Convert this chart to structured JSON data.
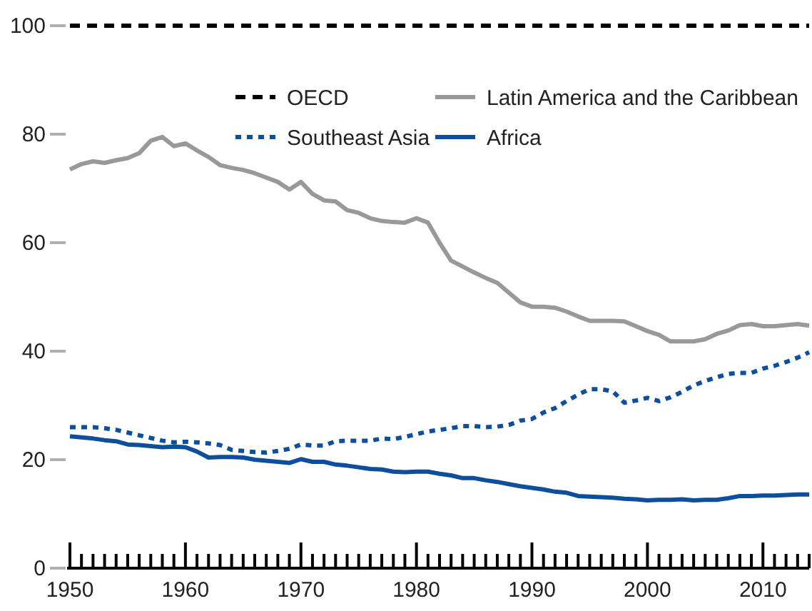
{
  "chart_data": {
    "type": "line",
    "ylim": [
      0,
      100
    ],
    "yticks": [
      0,
      20,
      40,
      60,
      80,
      100
    ],
    "xlim": [
      1950,
      2014
    ],
    "xticks": [
      1950,
      {
        "value": 1951,
        "label": null
      },
      {
        "value": 1952,
        "label": null
      },
      {
        "value": 1953,
        "label": null
      },
      {
        "value": 1954,
        "label": null
      },
      {
        "value": 1955,
        "label": null
      },
      {
        "value": 1956,
        "label": null
      },
      {
        "value": 1957,
        "label": null
      },
      {
        "value": 1958,
        "label": null
      },
      {
        "value": 1959,
        "label": null
      },
      1960,
      {
        "value": 1961,
        "label": null
      },
      {
        "value": 1962,
        "label": null
      },
      {
        "value": 1963,
        "label": null
      },
      {
        "value": 1964,
        "label": null
      },
      {
        "value": 1965,
        "label": null
      },
      {
        "value": 1966,
        "label": null
      },
      {
        "value": 1967,
        "label": null
      },
      {
        "value": 1968,
        "label": null
      },
      {
        "value": 1969,
        "label": null
      },
      1970,
      {
        "value": 1971,
        "label": null
      },
      {
        "value": 1972,
        "label": null
      },
      {
        "value": 1973,
        "label": null
      },
      {
        "value": 1974,
        "label": null
      },
      {
        "value": 1975,
        "label": null
      },
      {
        "value": 1976,
        "label": null
      },
      {
        "value": 1977,
        "label": null
      },
      {
        "value": 1978,
        "label": null
      },
      {
        "value": 1979,
        "label": null
      },
      1980,
      {
        "value": 1981,
        "label": null
      },
      {
        "value": 1982,
        "label": null
      },
      {
        "value": 1983,
        "label": null
      },
      {
        "value": 1984,
        "label": null
      },
      {
        "value": 1985,
        "label": null
      },
      {
        "value": 1986,
        "label": null
      },
      {
        "value": 1987,
        "label": null
      },
      {
        "value": 1988,
        "label": null
      },
      {
        "value": 1989,
        "label": null
      },
      1990,
      {
        "value": 1991,
        "label": null
      },
      {
        "value": 1992,
        "label": null
      },
      {
        "value": 1993,
        "label": null
      },
      {
        "value": 1994,
        "label": null
      },
      {
        "value": 1995,
        "label": null
      },
      {
        "value": 1996,
        "label": null
      },
      {
        "value": 1997,
        "label": null
      },
      {
        "value": 1998,
        "label": null
      },
      {
        "value": 1999,
        "label": null
      },
      2000,
      {
        "value": 2001,
        "label": null
      },
      {
        "value": 2002,
        "label": null
      },
      {
        "value": 2003,
        "label": null
      },
      {
        "value": 2004,
        "label": null
      },
      {
        "value": 2005,
        "label": null
      },
      {
        "value": 2006,
        "label": null
      },
      {
        "value": 2007,
        "label": null
      },
      {
        "value": 2008,
        "label": null
      },
      {
        "value": 2009,
        "label": null
      },
      2010,
      {
        "value": 2011,
        "label": null
      },
      {
        "value": 2012,
        "label": null
      },
      {
        "value": 2013,
        "label": null
      },
      {
        "value": 2014,
        "label": null
      }
    ],
    "grid": false,
    "legend": "top",
    "marker": "none",
    "x": [
      1950,
      1951,
      1952,
      1953,
      1954,
      1955,
      1956,
      1957,
      1958,
      1959,
      1960,
      1961,
      1962,
      1963,
      1964,
      1965,
      1966,
      1967,
      1968,
      1969,
      1970,
      1971,
      1972,
      1973,
      1974,
      1975,
      1976,
      1977,
      1978,
      1979,
      1980,
      1981,
      1982,
      1983,
      1984,
      1985,
      1986,
      1987,
      1988,
      1989,
      1990,
      1991,
      1992,
      1993,
      1994,
      1995,
      1996,
      1997,
      1998,
      1999,
      2000,
      2001,
      2002,
      2003,
      2004,
      2005,
      2006,
      2007,
      2008,
      2009,
      2010,
      2011,
      2012,
      2013,
      2014
    ],
    "series": [
      {
        "name": "OECD",
        "color": "#000000",
        "line_style": "dashed",
        "x": [
          1950,
          2014
        ],
        "values": [
          100,
          100
        ]
      },
      {
        "name": "Latin America and the Caribbean",
        "color": "#999999",
        "line_style": "solid",
        "values": [
          73.5,
          74.5,
          75,
          74.7,
          75.2,
          75.6,
          76.5,
          78.8,
          79.5,
          77.8,
          78.3,
          77,
          75.8,
          74.3,
          73.8,
          73.4,
          72.8,
          72,
          71.2,
          69.8,
          71.2,
          69,
          67.8,
          67.6,
          66,
          65.5,
          64.5,
          64,
          63.8,
          63.7,
          64.5,
          63.7,
          60,
          56.7,
          55.6,
          54.5,
          53.5,
          52.6,
          50.8,
          49,
          48.2,
          48.2,
          48,
          47.3,
          46.4,
          45.6,
          45.6,
          45.6,
          45.5,
          44.6,
          43.7,
          43,
          41.8,
          41.8,
          41.8,
          42.2,
          43.2,
          43.8,
          44.8,
          45,
          44.6,
          44.6,
          44.8,
          45,
          44.7
        ]
      },
      {
        "name": "Southeast Asia",
        "color": "#0d4f9a",
        "line_style": "dotted",
        "values": [
          26,
          26,
          26,
          25.8,
          25.5,
          25,
          24.5,
          24,
          23.5,
          23.2,
          23.3,
          23.2,
          23,
          22.7,
          21.8,
          21.6,
          21.4,
          21.3,
          21.6,
          22,
          22.8,
          22.6,
          22.6,
          23.4,
          23.5,
          23.5,
          23.5,
          23.9,
          23.8,
          24.2,
          24.7,
          25.2,
          25.5,
          25.8,
          26.2,
          26.2,
          26,
          26.1,
          26.4,
          27.2,
          27.5,
          28.7,
          29.5,
          30.8,
          32,
          33,
          33,
          32.6,
          30.5,
          30.9,
          31.4,
          30.8,
          31.5,
          32.5,
          33.7,
          34.5,
          35.2,
          35.8,
          36,
          36,
          36.8,
          37.3,
          38,
          38.8,
          39.8
        ]
      },
      {
        "name": "Africa",
        "color": "#0d4f9a",
        "line_style": "solid",
        "values": [
          24.3,
          24.1,
          23.9,
          23.6,
          23.4,
          22.8,
          22.7,
          22.5,
          22.3,
          22.4,
          22.3,
          21.5,
          20.4,
          20.5,
          20.5,
          20.4,
          20,
          19.8,
          19.6,
          19.4,
          20.1,
          19.6,
          19.6,
          19.1,
          18.9,
          18.6,
          18.3,
          18.2,
          17.8,
          17.7,
          17.8,
          17.8,
          17.4,
          17.1,
          16.6,
          16.6,
          16.2,
          15.9,
          15.5,
          15.1,
          14.8,
          14.5,
          14.1,
          13.9,
          13.3,
          13.2,
          13.1,
          13,
          12.8,
          12.7,
          12.5,
          12.6,
          12.6,
          12.7,
          12.5,
          12.6,
          12.6,
          12.9,
          13.3,
          13.3,
          13.4,
          13.4,
          13.5,
          13.6,
          13.6
        ]
      }
    ]
  }
}
